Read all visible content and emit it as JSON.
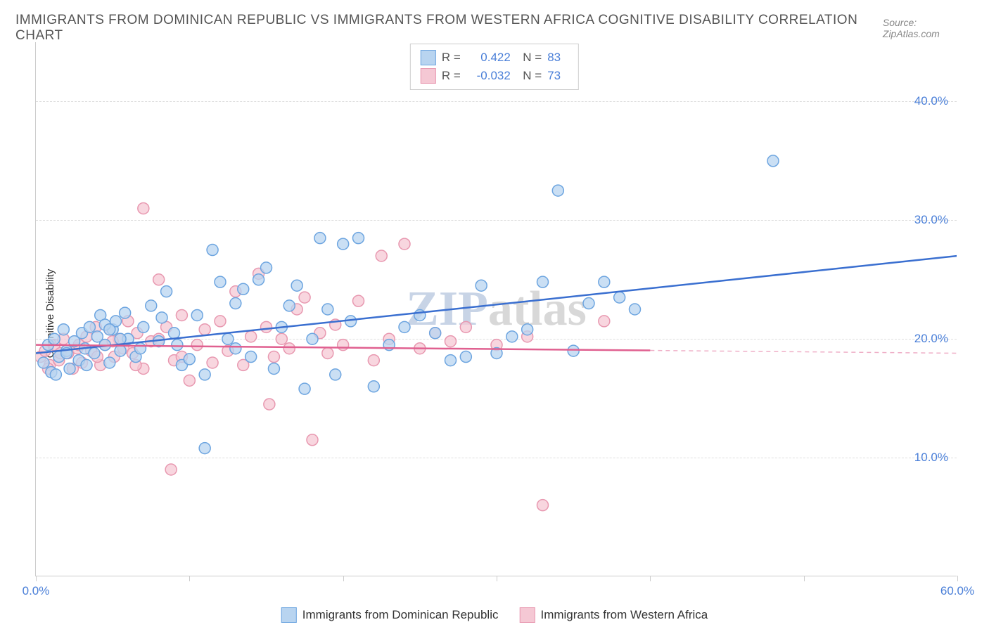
{
  "header": {
    "title": "IMMIGRANTS FROM DOMINICAN REPUBLIC VS IMMIGRANTS FROM WESTERN AFRICA COGNITIVE DISABILITY CORRELATION CHART",
    "source": "Source: ZipAtlas.com"
  },
  "chart": {
    "type": "scatter",
    "ylabel": "Cognitive Disability",
    "xlim": [
      0,
      60
    ],
    "ylim": [
      0,
      45
    ],
    "yticks": [
      10,
      20,
      30,
      40
    ],
    "ytick_labels": [
      "10.0%",
      "20.0%",
      "30.0%",
      "40.0%"
    ],
    "xticks": [
      0,
      10,
      20,
      30,
      40,
      50,
      60
    ],
    "xtick_labels_shown": {
      "0": "0.0%",
      "60": "60.0%"
    },
    "background_color": "#ffffff",
    "grid_color": "#dddddd",
    "axis_color": "#cccccc",
    "tick_label_color": "#4a7fd8",
    "watermark": {
      "text": "ZIPatlas",
      "zip_color": "#c8d4e6",
      "atlas_color": "#d8d8d8"
    },
    "series": [
      {
        "name": "Immigrants from Dominican Republic",
        "short": "blue",
        "R": "0.422",
        "N": "83",
        "marker_fill": "#b8d4f0",
        "marker_stroke": "#6da5e0",
        "marker_opacity": 0.75,
        "marker_radius": 8,
        "line_color": "#3a6fd0",
        "line_width": 2.5,
        "line_dash_extend": false,
        "trendline": {
          "x1": 0,
          "y1": 18.8,
          "x2": 60,
          "y2": 27.0,
          "data_xmax": 60
        },
        "points": [
          [
            0.5,
            18.0
          ],
          [
            0.8,
            19.5
          ],
          [
            1.0,
            17.2
          ],
          [
            1.2,
            20.0
          ],
          [
            1.5,
            18.5
          ],
          [
            1.8,
            20.8
          ],
          [
            2.0,
            19.0
          ],
          [
            2.2,
            17.5
          ],
          [
            2.5,
            19.8
          ],
          [
            2.8,
            18.2
          ],
          [
            3.0,
            20.5
          ],
          [
            3.2,
            19.2
          ],
          [
            3.5,
            21.0
          ],
          [
            3.8,
            18.8
          ],
          [
            4.0,
            20.2
          ],
          [
            4.2,
            22.0
          ],
          [
            4.5,
            19.5
          ],
          [
            4.8,
            18.0
          ],
          [
            5.0,
            20.8
          ],
          [
            5.2,
            21.5
          ],
          [
            5.5,
            19.0
          ],
          [
            5.8,
            22.2
          ],
          [
            6.0,
            20.0
          ],
          [
            6.5,
            18.5
          ],
          [
            7.0,
            21.0
          ],
          [
            7.5,
            22.8
          ],
          [
            8.0,
            19.8
          ],
          [
            8.5,
            24.0
          ],
          [
            9.0,
            20.5
          ],
          [
            9.5,
            17.8
          ],
          [
            10.0,
            18.3
          ],
          [
            10.5,
            22.0
          ],
          [
            11.0,
            10.8
          ],
          [
            11.5,
            27.5
          ],
          [
            12.0,
            24.8
          ],
          [
            12.5,
            20.0
          ],
          [
            13.0,
            23.0
          ],
          [
            13.5,
            24.2
          ],
          [
            14.0,
            18.5
          ],
          [
            14.5,
            25.0
          ],
          [
            15.0,
            26.0
          ],
          [
            15.5,
            17.5
          ],
          [
            16.0,
            21.0
          ],
          [
            16.5,
            22.8
          ],
          [
            17.0,
            24.5
          ],
          [
            17.5,
            15.8
          ],
          [
            18.0,
            20.0
          ],
          [
            18.5,
            28.5
          ],
          [
            19.0,
            22.5
          ],
          [
            19.5,
            17.0
          ],
          [
            20.0,
            28.0
          ],
          [
            20.5,
            21.5
          ],
          [
            21.0,
            28.5
          ],
          [
            22.0,
            16.0
          ],
          [
            23.0,
            19.5
          ],
          [
            24.0,
            21.0
          ],
          [
            25.0,
            22.0
          ],
          [
            26.0,
            20.5
          ],
          [
            27.0,
            18.2
          ],
          [
            28.0,
            18.5
          ],
          [
            29.0,
            24.5
          ],
          [
            30.0,
            18.8
          ],
          [
            31.0,
            20.2
          ],
          [
            32.0,
            20.8
          ],
          [
            33.0,
            24.8
          ],
          [
            34.0,
            32.5
          ],
          [
            35.0,
            19.0
          ],
          [
            36.0,
            23.0
          ],
          [
            37.0,
            24.8
          ],
          [
            38.0,
            23.5
          ],
          [
            39.0,
            22.5
          ],
          [
            48.0,
            35.0
          ],
          [
            1.3,
            17.0
          ],
          [
            2.0,
            18.8
          ],
          [
            3.3,
            17.8
          ],
          [
            4.5,
            21.2
          ],
          [
            5.5,
            20.0
          ],
          [
            6.8,
            19.2
          ],
          [
            8.2,
            21.8
          ],
          [
            9.2,
            19.5
          ],
          [
            11.0,
            17.0
          ],
          [
            13.0,
            19.2
          ],
          [
            4.8,
            20.8
          ]
        ]
      },
      {
        "name": "Immigrants from Western Africa",
        "short": "pink",
        "R": "-0.032",
        "N": "73",
        "marker_fill": "#f5c8d4",
        "marker_stroke": "#e898b0",
        "marker_opacity": 0.75,
        "marker_radius": 8,
        "line_color": "#e06090",
        "line_width": 2.5,
        "line_dash_extend": true,
        "trendline": {
          "x1": 0,
          "y1": 19.5,
          "x2": 60,
          "y2": 18.8,
          "data_xmax": 40
        },
        "points": [
          [
            0.3,
            18.5
          ],
          [
            0.6,
            19.0
          ],
          [
            0.9,
            17.8
          ],
          [
            1.2,
            19.5
          ],
          [
            1.5,
            18.2
          ],
          [
            1.8,
            20.0
          ],
          [
            2.1,
            18.8
          ],
          [
            2.4,
            17.5
          ],
          [
            2.7,
            19.2
          ],
          [
            3.0,
            18.0
          ],
          [
            3.3,
            20.2
          ],
          [
            3.6,
            19.0
          ],
          [
            3.9,
            21.0
          ],
          [
            4.2,
            17.8
          ],
          [
            4.5,
            19.5
          ],
          [
            4.8,
            20.8
          ],
          [
            5.1,
            18.5
          ],
          [
            5.4,
            20.0
          ],
          [
            5.7,
            19.2
          ],
          [
            6.0,
            21.5
          ],
          [
            6.3,
            18.8
          ],
          [
            6.6,
            20.5
          ],
          [
            7.0,
            17.5
          ],
          [
            7.5,
            19.8
          ],
          [
            8.0,
            25.0
          ],
          [
            8.5,
            21.0
          ],
          [
            9.0,
            18.2
          ],
          [
            9.5,
            22.0
          ],
          [
            10.0,
            16.5
          ],
          [
            10.5,
            19.5
          ],
          [
            11.0,
            20.8
          ],
          [
            11.5,
            18.0
          ],
          [
            12.0,
            21.5
          ],
          [
            12.5,
            19.0
          ],
          [
            13.0,
            24.0
          ],
          [
            13.5,
            17.8
          ],
          [
            14.0,
            20.2
          ],
          [
            14.5,
            25.5
          ],
          [
            15.0,
            21.0
          ],
          [
            15.2,
            14.5
          ],
          [
            15.5,
            18.5
          ],
          [
            16.0,
            20.0
          ],
          [
            16.5,
            19.2
          ],
          [
            17.0,
            22.5
          ],
          [
            17.5,
            23.5
          ],
          [
            18.0,
            11.5
          ],
          [
            18.5,
            20.5
          ],
          [
            19.0,
            18.8
          ],
          [
            19.5,
            21.2
          ],
          [
            20.0,
            19.5
          ],
          [
            21.0,
            23.2
          ],
          [
            22.0,
            18.2
          ],
          [
            22.5,
            27.0
          ],
          [
            23.0,
            20.0
          ],
          [
            24.0,
            28.0
          ],
          [
            25.0,
            19.2
          ],
          [
            26.0,
            20.5
          ],
          [
            27.0,
            19.8
          ],
          [
            28.0,
            21.0
          ],
          [
            30.0,
            19.5
          ],
          [
            32.0,
            20.2
          ],
          [
            33.0,
            6.0
          ],
          [
            37.0,
            21.5
          ],
          [
            7.0,
            31.0
          ],
          [
            8.8,
            9.0
          ],
          [
            0.8,
            17.5
          ],
          [
            1.6,
            18.8
          ],
          [
            2.8,
            19.5
          ],
          [
            4.0,
            18.5
          ],
          [
            5.0,
            19.8
          ],
          [
            6.5,
            17.8
          ],
          [
            8.0,
            20.0
          ],
          [
            9.5,
            18.5
          ]
        ]
      }
    ]
  },
  "legend_bottom": [
    {
      "label": "Immigrants from Dominican Republic",
      "fill": "#b8d4f0",
      "stroke": "#6da5e0"
    },
    {
      "label": "Immigrants from Western Africa",
      "fill": "#f5c8d4",
      "stroke": "#e898b0"
    }
  ]
}
